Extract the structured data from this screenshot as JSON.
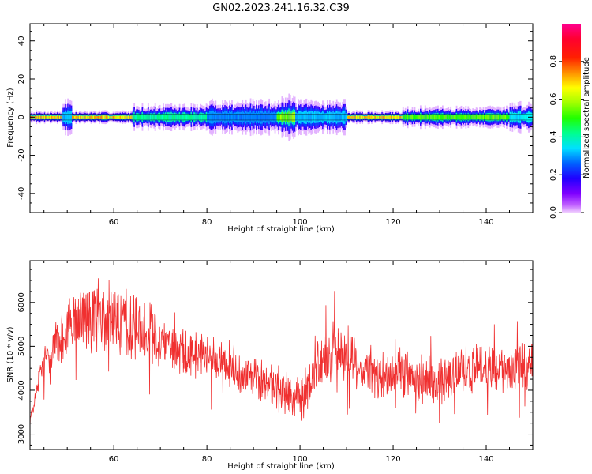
{
  "title": "GN02.2023.241.16.32.C39",
  "chart_data": [
    {
      "type": "heatmap",
      "xlabel": "Height of straight line (km)",
      "ylabel": "Frequency (Hz)",
      "xlim": [
        42,
        150
      ],
      "ylim": [
        -50,
        49
      ],
      "xticks": [
        60,
        80,
        100,
        120,
        140
      ],
      "yticks": [
        -40,
        -20,
        0,
        20,
        40
      ],
      "grid": false,
      "colorbar": {
        "label": "Normalized spectral amplitude",
        "range": [
          0.0,
          1.0
        ],
        "ticks": [
          "0.0",
          "0.2",
          "0.4",
          "0.6",
          "0.8"
        ],
        "colormap": "hsv-reversed"
      },
      "band": {
        "center_hz": 0,
        "segments": [
          {
            "x0": 42,
            "x1": 49,
            "halfwidth_hz": 1.5,
            "peak": 0.9
          },
          {
            "x0": 49,
            "x1": 51,
            "halfwidth_hz": 4.5,
            "peak": 0.35
          },
          {
            "x0": 51,
            "x1": 64,
            "halfwidth_hz": 1.5,
            "peak": 0.9
          },
          {
            "x0": 64,
            "x1": 80,
            "halfwidth_hz": 3,
            "peak": 0.5
          },
          {
            "x0": 80,
            "x1": 95,
            "halfwidth_hz": 4,
            "peak": 0.3
          },
          {
            "x0": 95,
            "x1": 99,
            "halfwidth_hz": 5,
            "peak": 0.75
          },
          {
            "x0": 99,
            "x1": 110,
            "halfwidth_hz": 4,
            "peak": 0.35
          },
          {
            "x0": 110,
            "x1": 122,
            "halfwidth_hz": 1.5,
            "peak": 0.9
          },
          {
            "x0": 122,
            "x1": 145,
            "halfwidth_hz": 2.5,
            "peak": 0.7
          },
          {
            "x0": 145,
            "x1": 150,
            "halfwidth_hz": 3.5,
            "peak": 0.4
          }
        ]
      }
    },
    {
      "type": "line",
      "xlabel": "Height of straight line (km)",
      "ylabel": "SNR (10 * v/v)",
      "xlim": [
        42,
        150
      ],
      "ylim": [
        2650,
        6950
      ],
      "xticks": [
        60,
        80,
        100,
        120,
        140
      ],
      "yticks": [
        3000,
        4000,
        5000,
        6000
      ],
      "grid": false,
      "series": [
        {
          "color": "#f03030",
          "x": [
            42,
            44,
            46,
            48,
            50,
            52,
            54,
            56,
            58,
            60,
            62,
            64,
            66,
            68,
            70,
            72,
            74,
            76,
            78,
            80,
            82,
            84,
            86,
            88,
            90,
            92,
            94,
            96,
            98,
            100,
            102,
            104,
            106,
            108,
            110,
            112,
            114,
            116,
            118,
            120,
            122,
            124,
            126,
            128,
            130,
            132,
            134,
            136,
            138,
            140,
            142,
            144,
            146,
            148,
            150
          ],
          "y": [
            3300,
            4300,
            4850,
            5100,
            5350,
            5550,
            5650,
            5700,
            5600,
            5650,
            5550,
            5450,
            5400,
            5250,
            5150,
            5050,
            4950,
            4850,
            4800,
            4750,
            4650,
            4550,
            4500,
            4400,
            4300,
            4200,
            4100,
            4000,
            3900,
            3850,
            4100,
            4550,
            4800,
            4900,
            4850,
            4600,
            4450,
            4350,
            4300,
            4350,
            4400,
            4350,
            4300,
            4200,
            4200,
            4300,
            4400,
            4450,
            4500,
            4550,
            4500,
            4400,
            4450,
            4550,
            4700
          ],
          "noise_amplitude": [
            150,
            300,
            450,
            600,
            750,
            800,
            850,
            900,
            900,
            850,
            800,
            750,
            700,
            650,
            600,
            580,
            560,
            550,
            540,
            520,
            520,
            520,
            520,
            520,
            520,
            520,
            520,
            520,
            520,
            520,
            560,
            600,
            620,
            620,
            600,
            560,
            560,
            560,
            560,
            560,
            560,
            560,
            560,
            560,
            560,
            560,
            560,
            560,
            560,
            560,
            560,
            560,
            560,
            560,
            560
          ]
        }
      ]
    }
  ]
}
